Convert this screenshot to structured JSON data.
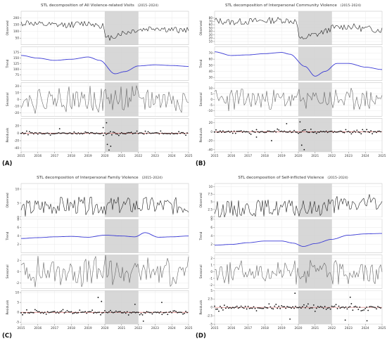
{
  "figure": {
    "panel_letters": [
      "(A)",
      "(B)",
      "(C)",
      "(D)"
    ]
  },
  "colors": {
    "observed": "#222222",
    "trend": "#3b3bd6",
    "seasonal": "#666666",
    "residual_point": "#111111",
    "residual_line": "#d05555",
    "shade": "#d0d0d0",
    "grid": "#e6e6e6"
  },
  "chart_data": [
    {
      "type": "line",
      "title": "STL decomposition of All Violence-related Visits",
      "subtitle": "(2015–2024)",
      "x_ticks": [
        "2015",
        "2016",
        "2017",
        "2018",
        "2019",
        "2020",
        "2021",
        "2022",
        "2023",
        "2024",
        "2025"
      ],
      "x_range": [
        2015,
        2025
      ],
      "shaded_period": [
        2020,
        2022
      ],
      "series": [
        {
          "name": "Observed",
          "ylim": [
            0,
            250
          ],
          "yticks": [
            50,
            100,
            150,
            200
          ],
          "anchors": [
            [
              2015,
              160
            ],
            [
              2015.5,
              165
            ],
            [
              2016,
              150
            ],
            [
              2017,
              145
            ],
            [
              2018,
              150
            ],
            [
              2019,
              160
            ],
            [
              2019.9,
              145
            ],
            [
              2020.05,
              40
            ],
            [
              2020.3,
              55
            ],
            [
              2021,
              85
            ],
            [
              2022,
              110
            ],
            [
              2023,
              125
            ],
            [
              2024,
              110
            ],
            [
              2024.9,
              110
            ]
          ],
          "noise": 24,
          "seed": 11
        },
        {
          "name": "Trend",
          "ylim": [
            50,
            200
          ],
          "yticks": [
            75,
            100,
            125,
            150,
            175
          ],
          "anchors": [
            [
              2015,
              162
            ],
            [
              2016,
              150
            ],
            [
              2017,
              140
            ],
            [
              2018,
              145
            ],
            [
              2019,
              155
            ],
            [
              2019.7,
              140
            ],
            [
              2020.6,
              80
            ],
            [
              2021.2,
              90
            ],
            [
              2022,
              115
            ],
            [
              2023,
              120
            ],
            [
              2024,
              117
            ],
            [
              2025,
              113
            ]
          ],
          "noise": 0,
          "seed": 0
        },
        {
          "name": "Seasonal",
          "ylim": [
            -25,
            25
          ],
          "yticks": [
            -20,
            -10,
            0,
            10,
            20
          ],
          "anchors": [
            [
              2015,
              0
            ],
            [
              2025,
              0
            ]
          ],
          "noise": 16,
          "seed": 21
        },
        {
          "name": "Residuals",
          "ylim": [
            -50,
            40
          ],
          "yticks": [
            -40,
            -20,
            0,
            20
          ],
          "outliers": [
            [
              2020.1,
              28
            ],
            [
              2020.15,
              -30
            ],
            [
              2020.25,
              -45
            ],
            [
              2020.35,
              -35
            ],
            [
              2019.9,
              15
            ],
            [
              2017.3,
              12
            ]
          ],
          "noise": 6,
          "seed": 31
        }
      ]
    },
    {
      "type": "line",
      "title": "STL decomposition of Interpersonal Community Violence",
      "subtitle": "(2015–2024)",
      "x_ticks": [
        "2015",
        "2016",
        "2017",
        "2018",
        "2019",
        "2020",
        "2021",
        "2022",
        "2023",
        "2024",
        "2025"
      ],
      "x_range": [
        2015,
        2025
      ],
      "shaded_period": [
        2020,
        2022
      ],
      "series": [
        {
          "name": "Observed",
          "ylim": [
            0,
            100
          ],
          "yticks": [
            10,
            20,
            30,
            40,
            50,
            60,
            70,
            80
          ],
          "anchors": [
            [
              2015,
              72
            ],
            [
              2016,
              68
            ],
            [
              2017,
              70
            ],
            [
              2018,
              72
            ],
            [
              2019,
              74
            ],
            [
              2019.9,
              70
            ],
            [
              2020.05,
              15
            ],
            [
              2020.4,
              22
            ],
            [
              2021,
              30
            ],
            [
              2021.6,
              40
            ],
            [
              2022,
              50
            ],
            [
              2023,
              55
            ],
            [
              2024,
              48
            ],
            [
              2024.9,
              45
            ]
          ],
          "noise": 10,
          "seed": 12
        },
        {
          "name": "Trend",
          "ylim": [
            25,
            80
          ],
          "yticks": [
            30,
            40,
            50,
            60,
            70
          ],
          "anchors": [
            [
              2015,
              72
            ],
            [
              2016,
              66
            ],
            [
              2017,
              67
            ],
            [
              2018,
              69
            ],
            [
              2019,
              71
            ],
            [
              2019.5,
              68
            ],
            [
              2020.4,
              48
            ],
            [
              2021,
              32
            ],
            [
              2021.6,
              40
            ],
            [
              2022.3,
              53
            ],
            [
              2023,
              53
            ],
            [
              2024,
              47
            ],
            [
              2025,
              43
            ]
          ],
          "noise": 0,
          "seed": 0
        },
        {
          "name": "Seasonal",
          "ylim": [
            -15,
            15
          ],
          "yticks": [
            -10,
            -5,
            0,
            5,
            10
          ],
          "anchors": [
            [
              2015,
              0
            ],
            [
              2025,
              0
            ]
          ],
          "noise": 8,
          "seed": 22
        },
        {
          "name": "Residuals",
          "ylim": [
            -45,
            30
          ],
          "yticks": [
            -40,
            -20,
            0,
            20
          ],
          "outliers": [
            [
              2020.1,
              22
            ],
            [
              2020.2,
              -30
            ],
            [
              2020.35,
              -40
            ],
            [
              2018.4,
              -20
            ],
            [
              2019.3,
              18
            ],
            [
              2017.5,
              -12
            ]
          ],
          "noise": 6,
          "seed": 32
        }
      ]
    },
    {
      "type": "line",
      "title": "STL decomposition of Interpersonal Family Violence",
      "subtitle": "(2015–2024)",
      "x_ticks": [
        "2015",
        "2016",
        "2017",
        "2018",
        "2019",
        "2020",
        "2021",
        "2022",
        "2023",
        "2024",
        "2025"
      ],
      "x_range": [
        2015,
        2025
      ],
      "shaded_period": [
        2020,
        2022
      ],
      "series": [
        {
          "name": "Observed",
          "ylim": [
            0,
            12
          ],
          "yticks": [
            0,
            5,
            10
          ],
          "anchors": [
            [
              2015,
              3
            ],
            [
              2017,
              4
            ],
            [
              2019,
              4
            ],
            [
              2020,
              4
            ],
            [
              2021,
              4
            ],
            [
              2022,
              4
            ],
            [
              2023,
              4
            ],
            [
              2025,
              4
            ]
          ],
          "noise": 3.2,
          "seed": 13,
          "clip_min": 0
        },
        {
          "name": "Trend",
          "ylim": [
            0,
            8
          ],
          "yticks": [
            2,
            4,
            6,
            8
          ],
          "anchors": [
            [
              2015,
              3.4
            ],
            [
              2016,
              3.6
            ],
            [
              2017,
              3.8
            ],
            [
              2018,
              3.9
            ],
            [
              2019,
              3.7
            ],
            [
              2020,
              4.2
            ],
            [
              2021,
              4.0
            ],
            [
              2021.8,
              3.8
            ],
            [
              2022.4,
              4.8
            ],
            [
              2023.2,
              3.7
            ],
            [
              2024,
              3.8
            ],
            [
              2025,
              4.0
            ]
          ],
          "noise": 0,
          "seed": 0
        },
        {
          "name": "Seasonal",
          "ylim": [
            -3,
            3
          ],
          "yticks": [
            -2,
            0,
            2
          ],
          "anchors": [
            [
              2015,
              0
            ],
            [
              2025,
              0
            ]
          ],
          "noise": 2.2,
          "seed": 23
        },
        {
          "name": "Residuals",
          "ylim": [
            -6,
            11
          ],
          "yticks": [
            -5,
            0,
            5,
            10
          ],
          "outliers": [
            [
              2019.6,
              7.5
            ],
            [
              2019.8,
              5.5
            ],
            [
              2022.3,
              -4.5
            ],
            [
              2023.4,
              5
            ],
            [
              2021.8,
              4
            ]
          ],
          "noise": 1.4,
          "seed": 33
        }
      ]
    },
    {
      "type": "line",
      "title": "STL decomposition of Self-inflicted Violence",
      "subtitle": "(2015–2024)",
      "x_ticks": [
        "2015",
        "2016",
        "2017",
        "2018",
        "2019",
        "2020",
        "2021",
        "2022",
        "2023",
        "2024",
        "2025"
      ],
      "x_range": [
        2015,
        2025
      ],
      "shaded_period": [
        2020,
        2022
      ],
      "series": [
        {
          "name": "Observed",
          "ylim": [
            0,
            11
          ],
          "yticks": [
            0.0,
            2.5,
            5.0,
            7.5,
            10.0
          ],
          "anchors": [
            [
              2015,
              2.5
            ],
            [
              2017,
              3
            ],
            [
              2019,
              3
            ],
            [
              2020,
              2.5
            ],
            [
              2021,
              3
            ],
            [
              2022,
              4
            ],
            [
              2023,
              4
            ],
            [
              2025,
              5
            ]
          ],
          "noise": 2.8,
          "seed": 14,
          "clip_min": 0
        },
        {
          "name": "Trend",
          "ylim": [
            0,
            8
          ],
          "yticks": [
            2,
            4,
            6,
            8
          ],
          "anchors": [
            [
              2015,
              1.8
            ],
            [
              2016,
              2.0
            ],
            [
              2017,
              2.4
            ],
            [
              2018,
              2.8
            ],
            [
              2019,
              2.8
            ],
            [
              2019.7,
              2.3
            ],
            [
              2020.3,
              1.5
            ],
            [
              2021,
              2.2
            ],
            [
              2022,
              3.2
            ],
            [
              2023,
              4.2
            ],
            [
              2024,
              4.5
            ],
            [
              2025,
              4.6
            ]
          ],
          "noise": 0,
          "seed": 0
        },
        {
          "name": "Seasonal",
          "ylim": [
            -2.5,
            2.5
          ],
          "yticks": [
            -2,
            -1,
            0,
            1,
            2
          ],
          "anchors": [
            [
              2015,
              0
            ],
            [
              2025,
              0
            ]
          ],
          "noise": 1.5,
          "seed": 24
        },
        {
          "name": "Residuals",
          "ylim": [
            -5,
            5
          ],
          "yticks": [
            -5.0,
            -2.5,
            0.0,
            2.5,
            5.0
          ],
          "outliers": [
            [
              2019.8,
              4.2
            ],
            [
              2019.5,
              -3.5
            ],
            [
              2022.8,
              -3.8
            ],
            [
              2024.1,
              -4
            ],
            [
              2023.1,
              3
            ]
          ],
          "noise": 1.2,
          "seed": 34
        }
      ]
    }
  ]
}
